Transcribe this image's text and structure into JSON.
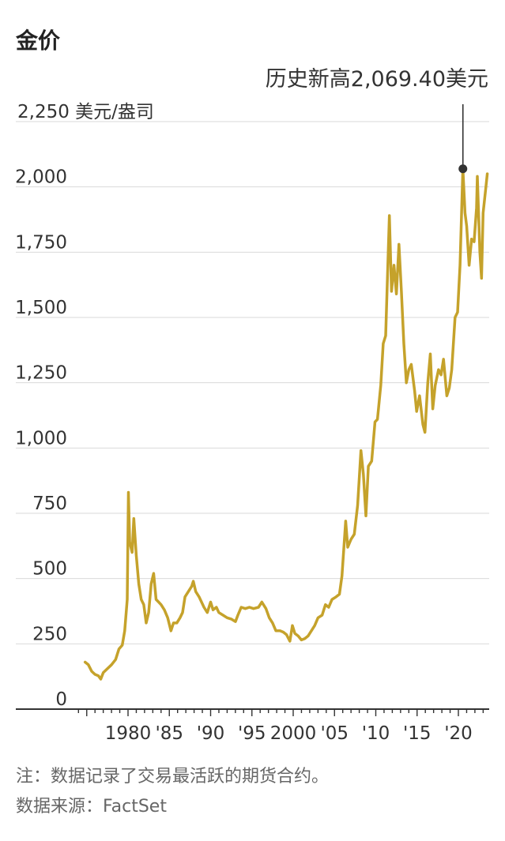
{
  "title": "金价",
  "note": "注：数据记录了交易最活跃的期货合约。",
  "source": "数据来源：FactSet",
  "colors": {
    "line": "#C5A22B",
    "marker": "#333333"
  },
  "chart_data": {
    "type": "line",
    "title": "金价",
    "xlabel": "",
    "ylabel": "美元/盎司",
    "ylim": [
      0,
      2250
    ],
    "xlim": [
      1974,
      2023.7
    ],
    "y_ticks": [
      {
        "value": 0,
        "label": "0"
      },
      {
        "value": 250,
        "label": "250"
      },
      {
        "value": 500,
        "label": "500"
      },
      {
        "value": 750,
        "label": "750"
      },
      {
        "value": 1000,
        "label": "1,000"
      },
      {
        "value": 1250,
        "label": "1,250"
      },
      {
        "value": 1500,
        "label": "1,500"
      },
      {
        "value": 1750,
        "label": "1,750"
      },
      {
        "value": 2000,
        "label": "2,000"
      },
      {
        "value": 2250,
        "label": "2,250 美元/盎司"
      }
    ],
    "x_ticks": [
      {
        "value": 1980,
        "label": "1980"
      },
      {
        "value": 1985,
        "label": "'85"
      },
      {
        "value": 1990,
        "label": "'90"
      },
      {
        "value": 1995,
        "label": "'95"
      },
      {
        "value": 2000,
        "label": "2000"
      },
      {
        "value": 2005,
        "label": "'05"
      },
      {
        "value": 2010,
        "label": "'10"
      },
      {
        "value": 2015,
        "label": "'15"
      },
      {
        "value": 2020,
        "label": "'20"
      }
    ],
    "grid": true,
    "series": [
      {
        "points": [
          [
            1974.8,
            180
          ],
          [
            1975.2,
            170
          ],
          [
            1975.6,
            145
          ],
          [
            1976.0,
            133
          ],
          [
            1976.4,
            128
          ],
          [
            1976.7,
            115
          ],
          [
            1977.0,
            140
          ],
          [
            1977.5,
            155
          ],
          [
            1978.0,
            170
          ],
          [
            1978.5,
            190
          ],
          [
            1978.9,
            230
          ],
          [
            1979.3,
            245
          ],
          [
            1979.6,
            300
          ],
          [
            1979.9,
            420
          ],
          [
            1980.05,
            830
          ],
          [
            1980.2,
            640
          ],
          [
            1980.5,
            600
          ],
          [
            1980.7,
            730
          ],
          [
            1981.0,
            590
          ],
          [
            1981.3,
            480
          ],
          [
            1981.6,
            420
          ],
          [
            1981.9,
            400
          ],
          [
            1982.2,
            330
          ],
          [
            1982.5,
            370
          ],
          [
            1982.8,
            480
          ],
          [
            1983.1,
            520
          ],
          [
            1983.4,
            420
          ],
          [
            1983.7,
            410
          ],
          [
            1984.0,
            400
          ],
          [
            1984.4,
            380
          ],
          [
            1984.8,
            350
          ],
          [
            1985.2,
            300
          ],
          [
            1985.5,
            330
          ],
          [
            1985.9,
            330
          ],
          [
            1986.3,
            350
          ],
          [
            1986.6,
            370
          ],
          [
            1986.9,
            430
          ],
          [
            1987.3,
            450
          ],
          [
            1987.7,
            470
          ],
          [
            1987.9,
            490
          ],
          [
            1988.2,
            450
          ],
          [
            1988.6,
            430
          ],
          [
            1988.9,
            410
          ],
          [
            1989.2,
            390
          ],
          [
            1989.6,
            370
          ],
          [
            1990.0,
            410
          ],
          [
            1990.3,
            380
          ],
          [
            1990.7,
            390
          ],
          [
            1991.0,
            370
          ],
          [
            1991.5,
            360
          ],
          [
            1992.0,
            350
          ],
          [
            1992.5,
            345
          ],
          [
            1993.0,
            335
          ],
          [
            1993.3,
            360
          ],
          [
            1993.7,
            390
          ],
          [
            1994.2,
            385
          ],
          [
            1994.7,
            390
          ],
          [
            1995.2,
            385
          ],
          [
            1995.8,
            390
          ],
          [
            1996.2,
            410
          ],
          [
            1996.7,
            385
          ],
          [
            1997.1,
            350
          ],
          [
            1997.5,
            330
          ],
          [
            1997.9,
            300
          ],
          [
            1998.4,
            300
          ],
          [
            1998.8,
            295
          ],
          [
            1999.2,
            285
          ],
          [
            1999.6,
            260
          ],
          [
            1999.9,
            320
          ],
          [
            2000.2,
            290
          ],
          [
            2000.6,
            280
          ],
          [
            2001.0,
            265
          ],
          [
            2001.4,
            270
          ],
          [
            2001.8,
            280
          ],
          [
            2002.2,
            300
          ],
          [
            2002.6,
            320
          ],
          [
            2003.0,
            350
          ],
          [
            2003.5,
            360
          ],
          [
            2003.9,
            400
          ],
          [
            2004.3,
            390
          ],
          [
            2004.7,
            420
          ],
          [
            2005.2,
            430
          ],
          [
            2005.6,
            440
          ],
          [
            2005.9,
            510
          ],
          [
            2006.35,
            720
          ],
          [
            2006.6,
            620
          ],
          [
            2007.0,
            650
          ],
          [
            2007.4,
            670
          ],
          [
            2007.8,
            780
          ],
          [
            2008.2,
            990
          ],
          [
            2008.5,
            900
          ],
          [
            2008.8,
            740
          ],
          [
            2009.1,
            930
          ],
          [
            2009.5,
            950
          ],
          [
            2009.9,
            1100
          ],
          [
            2010.2,
            1110
          ],
          [
            2010.6,
            1240
          ],
          [
            2010.9,
            1400
          ],
          [
            2011.2,
            1430
          ],
          [
            2011.65,
            1890
          ],
          [
            2011.9,
            1600
          ],
          [
            2012.2,
            1700
          ],
          [
            2012.5,
            1590
          ],
          [
            2012.8,
            1780
          ],
          [
            2013.1,
            1600
          ],
          [
            2013.4,
            1400
          ],
          [
            2013.7,
            1250
          ],
          [
            2014.0,
            1300
          ],
          [
            2014.3,
            1320
          ],
          [
            2014.7,
            1220
          ],
          [
            2014.95,
            1140
          ],
          [
            2015.3,
            1200
          ],
          [
            2015.7,
            1090
          ],
          [
            2015.95,
            1060
          ],
          [
            2016.3,
            1250
          ],
          [
            2016.6,
            1360
          ],
          [
            2016.9,
            1150
          ],
          [
            2017.2,
            1240
          ],
          [
            2017.6,
            1300
          ],
          [
            2017.9,
            1280
          ],
          [
            2018.2,
            1340
          ],
          [
            2018.6,
            1200
          ],
          [
            2018.9,
            1230
          ],
          [
            2019.2,
            1300
          ],
          [
            2019.6,
            1500
          ],
          [
            2019.9,
            1520
          ],
          [
            2020.2,
            1700
          ],
          [
            2020.55,
            2069.4
          ],
          [
            2020.8,
            1900
          ],
          [
            2021.0,
            1850
          ],
          [
            2021.3,
            1700
          ],
          [
            2021.6,
            1800
          ],
          [
            2021.9,
            1790
          ],
          [
            2022.2,
            1920
          ],
          [
            2022.3,
            2040
          ],
          [
            2022.6,
            1750
          ],
          [
            2022.8,
            1650
          ],
          [
            2023.0,
            1900
          ],
          [
            2023.3,
            1990
          ],
          [
            2023.5,
            2050
          ]
        ]
      }
    ],
    "annotations": [
      {
        "text": "历史新高2,069.40美元",
        "x": 2020.55,
        "y": 2069.4
      }
    ]
  }
}
